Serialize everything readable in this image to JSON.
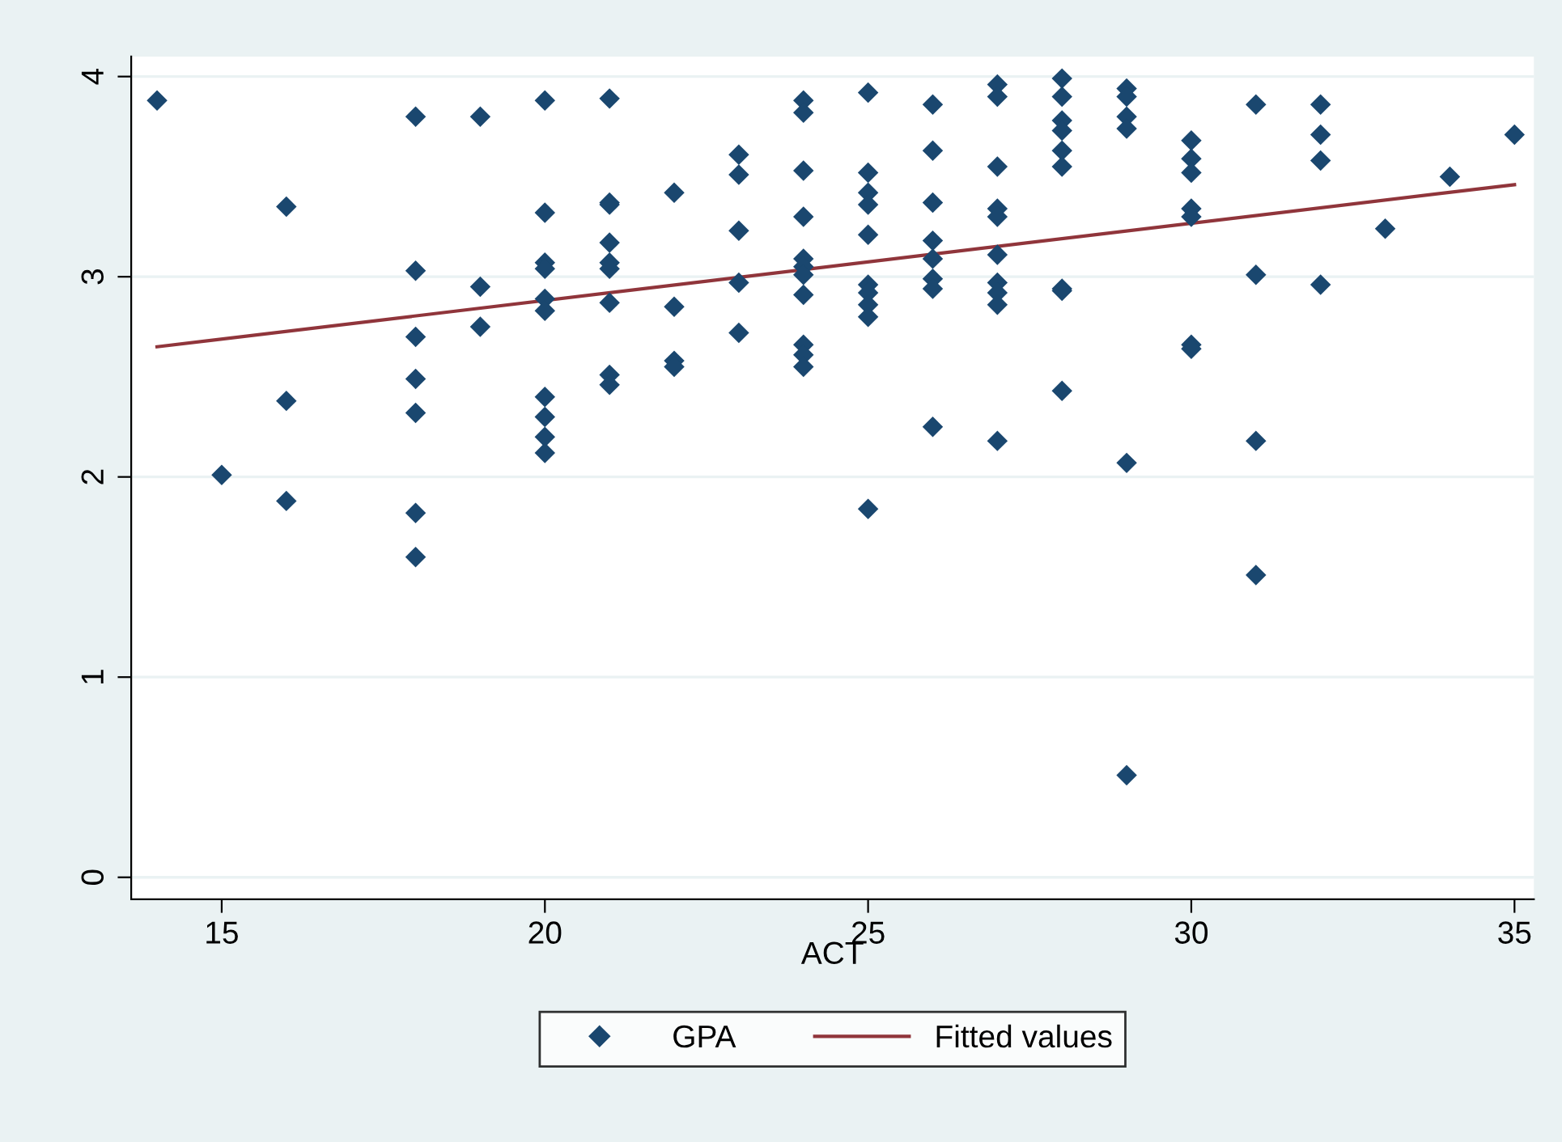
{
  "chart_data": {
    "type": "scatter",
    "xlabel": "ACT",
    "xlim": [
      13.6,
      35.3
    ],
    "ylim": [
      -0.11,
      4.1
    ],
    "xticks": [
      15,
      20,
      25,
      30,
      35
    ],
    "yticks": [
      0,
      1,
      2,
      3,
      4
    ],
    "grid": "y",
    "legend": "bottom",
    "series": [
      {
        "name": "GPA",
        "marker": "diamond",
        "color": "#1a476f",
        "x": [
          14,
          15,
          16,
          16,
          16,
          18,
          18,
          18,
          18,
          18,
          18,
          18,
          19,
          19,
          19,
          20,
          20,
          20,
          20,
          20,
          20,
          20,
          20,
          20,
          20,
          21,
          21,
          21,
          21,
          21,
          21,
          21,
          21,
          21,
          22,
          22,
          22,
          22,
          23,
          23,
          23,
          23,
          23,
          24,
          24,
          24,
          24,
          24,
          24,
          24,
          24,
          24,
          24,
          24,
          25,
          25,
          25,
          25,
          25,
          25,
          25,
          25,
          25,
          25,
          26,
          26,
          26,
          26,
          26,
          26,
          26,
          26,
          27,
          27,
          27,
          27,
          27,
          27,
          27,
          27,
          27,
          27,
          28,
          28,
          28,
          28,
          28,
          28,
          28,
          28,
          28,
          29,
          29,
          29,
          29,
          29,
          29,
          30,
          30,
          30,
          30,
          30,
          30,
          30,
          31,
          31,
          31,
          31,
          32,
          32,
          32,
          32,
          33,
          34,
          35
        ],
        "values": [
          3.88,
          2.01,
          3.35,
          2.38,
          1.88,
          3.8,
          3.03,
          2.7,
          2.49,
          2.32,
          1.82,
          1.6,
          3.8,
          2.95,
          2.75,
          3.88,
          3.32,
          3.07,
          3.04,
          2.89,
          2.83,
          2.4,
          2.3,
          2.2,
          2.12,
          3.89,
          3.37,
          3.36,
          3.17,
          3.07,
          3.04,
          2.87,
          2.51,
          2.46,
          3.42,
          2.85,
          2.58,
          2.55,
          3.61,
          3.51,
          3.23,
          2.97,
          2.72,
          3.88,
          3.82,
          3.53,
          3.3,
          3.09,
          3.05,
          3.01,
          2.91,
          2.66,
          2.61,
          2.55,
          3.92,
          3.52,
          3.42,
          3.36,
          3.21,
          2.96,
          2.92,
          2.86,
          2.8,
          1.84,
          3.86,
          3.63,
          3.37,
          3.18,
          3.09,
          2.99,
          2.94,
          2.25,
          3.96,
          3.9,
          3.55,
          3.34,
          3.3,
          3.11,
          2.97,
          2.92,
          2.86,
          2.18,
          3.99,
          3.9,
          3.78,
          3.73,
          3.63,
          3.55,
          2.94,
          2.93,
          2.43,
          3.94,
          3.9,
          3.8,
          3.74,
          2.07,
          0.51,
          3.68,
          3.59,
          3.52,
          3.34,
          3.3,
          2.66,
          2.64,
          3.86,
          3.01,
          2.18,
          1.51,
          3.86,
          3.71,
          3.58,
          2.96,
          3.24,
          3.5,
          3.71
        ]
      },
      {
        "name": "Fitted values",
        "type": "line",
        "color": "#90353b",
        "x": [
          14,
          35
        ],
        "values": [
          2.65,
          3.46
        ]
      }
    ]
  }
}
